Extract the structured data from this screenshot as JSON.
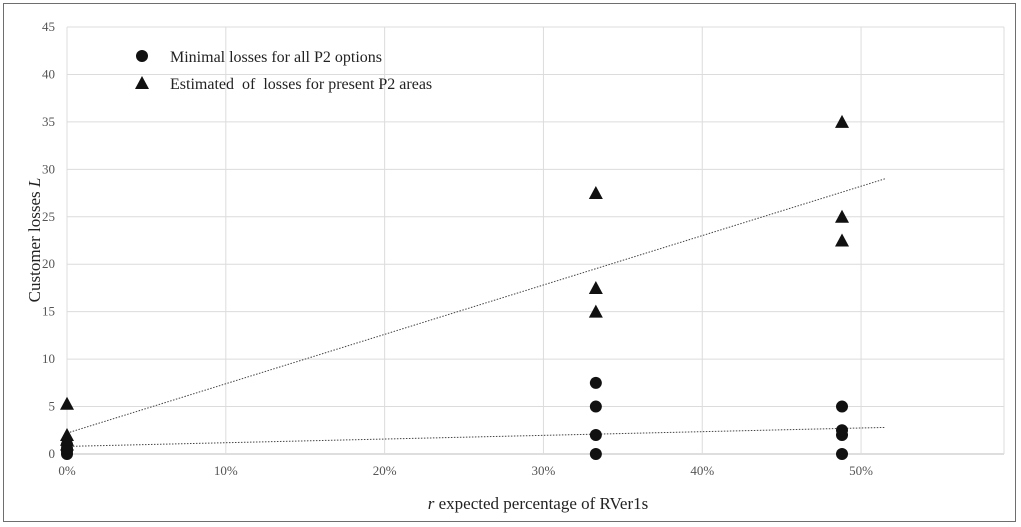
{
  "chart_data": {
    "type": "scatter",
    "xlabel_prefix": "r",
    "xlabel_rest": " expected percentage of RVer1s",
    "ylabel_main": "Customer losses ",
    "ylabel_symbol": "L",
    "xlim": [
      0,
      0.59
    ],
    "ylim": [
      0,
      45
    ],
    "x_ticks": [
      0,
      0.1,
      0.2,
      0.3,
      0.4,
      0.5
    ],
    "x_tick_labels": [
      "0%",
      "10%",
      "20%",
      "30%",
      "40%",
      "50%"
    ],
    "y_ticks": [
      0,
      5,
      10,
      15,
      20,
      25,
      30,
      35,
      40,
      45
    ],
    "y_tick_labels": [
      "0",
      "5",
      "10",
      "15",
      "20",
      "25",
      "30",
      "35",
      "40",
      "45"
    ],
    "grid": true,
    "legend_position": "top-left",
    "series": [
      {
        "name": "Minimal losses for all P2 options",
        "marker": "circle",
        "points": [
          [
            0,
            0
          ],
          [
            0,
            0.3
          ],
          [
            0,
            0.6
          ],
          [
            0,
            1.0
          ],
          [
            0.333,
            0
          ],
          [
            0.333,
            2.0
          ],
          [
            0.333,
            5.0
          ],
          [
            0.333,
            7.5
          ],
          [
            0.488,
            0
          ],
          [
            0.488,
            2.0
          ],
          [
            0.488,
            2.5
          ],
          [
            0.488,
            5.0
          ]
        ],
        "trendline": [
          [
            0,
            0.8
          ],
          [
            0.515,
            2.8
          ]
        ]
      },
      {
        "name": "Estimated  of  losses for present P2 areas",
        "marker": "triangle",
        "points": [
          [
            0,
            1.0
          ],
          [
            0,
            1.5
          ],
          [
            0,
            2.0
          ],
          [
            0,
            5.3
          ],
          [
            0.333,
            15.0
          ],
          [
            0.333,
            17.5
          ],
          [
            0.333,
            27.5
          ],
          [
            0.488,
            22.5
          ],
          [
            0.488,
            25.0
          ],
          [
            0.488,
            35.0
          ]
        ],
        "trendline": [
          [
            0,
            2.2
          ],
          [
            0.515,
            29.0
          ]
        ]
      }
    ]
  }
}
